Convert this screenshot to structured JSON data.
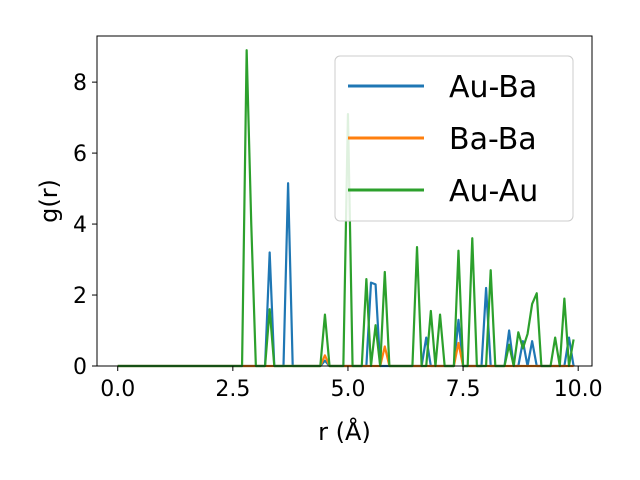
{
  "chart_data": {
    "type": "line",
    "xlabel": "r (Å)",
    "ylabel": "g(r)",
    "xlim": [
      -0.45,
      10.3
    ],
    "ylim": [
      0,
      9.3
    ],
    "xticks": [
      0.0,
      2.5,
      5.0,
      7.5,
      10.0
    ],
    "xtick_labels": [
      "0.0",
      "2.5",
      "5.0",
      "7.5",
      "10.0"
    ],
    "yticks": [
      0,
      2,
      4,
      6,
      8
    ],
    "ytick_labels": [
      "0",
      "2",
      "4",
      "6",
      "8"
    ],
    "grid": false,
    "legend_position": "top-right",
    "series": [
      {
        "name": "Au-Ba",
        "color": "#1f77b4",
        "points": [
          [
            0,
            0
          ],
          [
            3.2,
            0
          ],
          [
            3.3,
            3.2
          ],
          [
            3.4,
            0
          ],
          [
            3.6,
            0
          ],
          [
            3.7,
            5.15
          ],
          [
            3.8,
            0
          ],
          [
            4.4,
            0
          ],
          [
            4.5,
            0.15
          ],
          [
            4.6,
            0
          ],
          [
            5.4,
            0
          ],
          [
            5.5,
            2.35
          ],
          [
            5.6,
            2.3
          ],
          [
            5.7,
            0
          ],
          [
            6.6,
            0
          ],
          [
            6.7,
            0.8
          ],
          [
            6.8,
            0
          ],
          [
            7.3,
            0
          ],
          [
            7.4,
            1.3
          ],
          [
            7.5,
            0
          ],
          [
            7.9,
            0
          ],
          [
            8.0,
            2.2
          ],
          [
            8.1,
            0
          ],
          [
            8.4,
            0
          ],
          [
            8.5,
            1.0
          ],
          [
            8.6,
            0
          ],
          [
            8.7,
            0
          ],
          [
            8.8,
            0.7
          ],
          [
            8.9,
            0
          ],
          [
            9.0,
            0.7
          ],
          [
            9.1,
            0
          ],
          [
            9.7,
            0
          ],
          [
            9.8,
            0.8
          ],
          [
            9.9,
            0
          ]
        ]
      },
      {
        "name": "Ba-Ba",
        "color": "#ff7f0e",
        "points": [
          [
            0,
            0
          ],
          [
            4.4,
            0
          ],
          [
            4.5,
            0.3
          ],
          [
            4.6,
            0
          ],
          [
            5.7,
            0
          ],
          [
            5.8,
            0.55
          ],
          [
            5.9,
            0
          ],
          [
            7.3,
            0
          ],
          [
            7.4,
            0.65
          ],
          [
            7.5,
            0
          ],
          [
            9.9,
            0
          ]
        ]
      },
      {
        "name": "Au-Au",
        "color": "#2ca02c",
        "points": [
          [
            0,
            0
          ],
          [
            2.7,
            0
          ],
          [
            2.8,
            8.9
          ],
          [
            2.9,
            4.0
          ],
          [
            3.0,
            0
          ],
          [
            3.2,
            0
          ],
          [
            3.3,
            1.6
          ],
          [
            3.4,
            0
          ],
          [
            4.4,
            0
          ],
          [
            4.5,
            1.45
          ],
          [
            4.6,
            0
          ],
          [
            4.9,
            0
          ],
          [
            5.0,
            7.1
          ],
          [
            5.1,
            0
          ],
          [
            5.3,
            0
          ],
          [
            5.4,
            2.45
          ],
          [
            5.5,
            0
          ],
          [
            5.6,
            1.15
          ],
          [
            5.7,
            0
          ],
          [
            5.8,
            2.65
          ],
          [
            5.9,
            0
          ],
          [
            6.4,
            0
          ],
          [
            6.5,
            3.35
          ],
          [
            6.6,
            0
          ],
          [
            6.7,
            0
          ],
          [
            6.8,
            1.55
          ],
          [
            6.9,
            0
          ],
          [
            7.0,
            1.45
          ],
          [
            7.1,
            0
          ],
          [
            7.3,
            0
          ],
          [
            7.4,
            3.25
          ],
          [
            7.5,
            0
          ],
          [
            7.6,
            0
          ],
          [
            7.7,
            3.6
          ],
          [
            7.8,
            0
          ],
          [
            8.0,
            0
          ],
          [
            8.1,
            2.7
          ],
          [
            8.2,
            0
          ],
          [
            8.4,
            0
          ],
          [
            8.5,
            0.6
          ],
          [
            8.6,
            0
          ],
          [
            8.7,
            0.95
          ],
          [
            8.8,
            0.5
          ],
          [
            8.9,
            0.9
          ],
          [
            9.0,
            1.75
          ],
          [
            9.1,
            2.05
          ],
          [
            9.2,
            0
          ],
          [
            9.4,
            0
          ],
          [
            9.5,
            0.8
          ],
          [
            9.6,
            0
          ],
          [
            9.7,
            1.9
          ],
          [
            9.8,
            0
          ],
          [
            9.9,
            0.75
          ]
        ]
      }
    ]
  }
}
